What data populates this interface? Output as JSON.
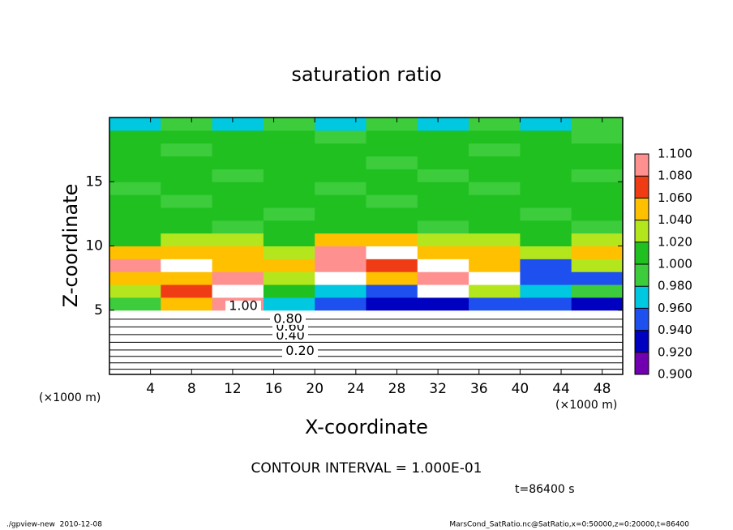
{
  "chart_data": {
    "type": "heatmap",
    "title": "saturation ratio",
    "x_label": "X-coordinate",
    "y_label": "Z-coordinate",
    "x_unit": "(×1000 m)",
    "y_unit": "(×1000 m)",
    "xlim": [
      0,
      50
    ],
    "xticks": [
      4,
      8,
      12,
      16,
      20,
      24,
      28,
      32,
      36,
      40,
      44,
      48
    ],
    "ylim": [
      0,
      20
    ],
    "yticks": [
      5,
      10,
      15
    ],
    "x": [
      2.5,
      7.5,
      12.5,
      17.5,
      22.5,
      27.5,
      32.5,
      37.5,
      42.5,
      47.5
    ],
    "z": [
      0.5,
      1.5,
      2.5,
      3.5,
      4.5,
      5.5,
      6.5,
      7.5,
      8.5,
      9.5,
      10.5,
      11.5,
      12.5,
      13.5,
      14.5,
      15.5,
      16.5,
      17.5,
      18.5,
      19.5
    ],
    "values": [
      [
        0.1,
        0.1,
        0.1,
        0.1,
        0.1,
        0.1,
        0.1,
        0.1,
        0.1,
        0.1
      ],
      [
        0.2,
        0.2,
        0.2,
        0.2,
        0.2,
        0.2,
        0.2,
        0.2,
        0.2,
        0.2
      ],
      [
        0.3,
        0.3,
        0.3,
        0.3,
        0.3,
        0.3,
        0.3,
        0.3,
        0.3,
        0.3
      ],
      [
        0.5,
        0.5,
        0.5,
        0.5,
        0.5,
        0.5,
        0.5,
        0.5,
        0.5,
        0.5
      ],
      [
        0.8,
        0.8,
        0.8,
        0.8,
        0.8,
        0.8,
        0.8,
        0.8,
        0.8,
        0.8
      ],
      [
        1.0,
        1.06,
        1.09,
        0.98,
        0.95,
        0.94,
        0.93,
        0.96,
        0.95,
        0.94
      ],
      [
        1.04,
        1.07,
        1.12,
        1.02,
        0.97,
        0.96,
        1.12,
        1.04,
        0.98,
        1.0
      ],
      [
        1.06,
        1.05,
        1.08,
        1.04,
        1.12,
        1.05,
        1.08,
        1.12,
        0.96,
        0.95
      ],
      [
        1.08,
        1.12,
        1.06,
        1.06,
        1.08,
        1.07,
        1.12,
        1.06,
        0.95,
        1.04
      ],
      [
        1.06,
        1.05,
        1.06,
        1.04,
        1.08,
        1.12,
        1.06,
        1.05,
        1.04,
        1.05
      ],
      [
        1.02,
        1.04,
        1.03,
        1.02,
        1.06,
        1.05,
        1.04,
        1.03,
        1.02,
        1.03
      ],
      [
        1.01,
        1.01,
        1.0,
        1.01,
        1.01,
        1.01,
        1.0,
        1.01,
        1.01,
        1.0
      ],
      [
        1.01,
        1.01,
        1.01,
        1.0,
        1.01,
        1.01,
        1.01,
        1.01,
        1.0,
        1.01
      ],
      [
        1.01,
        1.0,
        1.01,
        1.01,
        1.01,
        1.0,
        1.01,
        1.01,
        1.01,
        1.01
      ],
      [
        1.0,
        1.01,
        1.01,
        1.01,
        1.0,
        1.01,
        1.01,
        1.0,
        1.01,
        1.01
      ],
      [
        1.01,
        1.01,
        1.0,
        1.01,
        1.01,
        1.01,
        1.0,
        1.01,
        1.01,
        1.0
      ],
      [
        1.02,
        1.01,
        1.01,
        1.01,
        1.01,
        1.0,
        1.01,
        1.01,
        1.01,
        1.01
      ],
      [
        1.01,
        1.0,
        1.01,
        1.02,
        1.01,
        1.01,
        1.01,
        1.0,
        1.01,
        1.01
      ],
      [
        1.01,
        1.01,
        1.01,
        1.01,
        1.0,
        1.01,
        1.01,
        1.01,
        1.01,
        1.0
      ],
      [
        0.98,
        0.99,
        0.98,
        0.99,
        0.98,
        0.99,
        0.98,
        0.99,
        0.98,
        0.99
      ]
    ],
    "colorbar_ticks": [
      {
        "value": 0.9,
        "label": "0.900"
      },
      {
        "value": 0.92,
        "label": "0.920"
      },
      {
        "value": 0.94,
        "label": "0.940"
      },
      {
        "value": 0.96,
        "label": "0.960"
      },
      {
        "value": 0.98,
        "label": "0.980"
      },
      {
        "value": 1.0,
        "label": "1.000"
      },
      {
        "value": 1.02,
        "label": "1.020"
      },
      {
        "value": 1.04,
        "label": "1.040"
      },
      {
        "value": 1.06,
        "label": "1.060"
      },
      {
        "value": 1.08,
        "label": "1.080"
      },
      {
        "value": 1.1,
        "label": "1.100"
      }
    ],
    "colors": [
      "#7000b0",
      "#0000c0",
      "#1e50f0",
      "#00c8e0",
      "#3ccc3c",
      "#20c020",
      "#b4e61e",
      "#ffc000",
      "#f03c14",
      "#ff9090"
    ],
    "contour_labels": [
      "0.20",
      "0.40",
      "0.60",
      "0.80",
      "1.00"
    ],
    "contour_interval": "CONTOUR INTERVAL = 1.000E-01",
    "time_label": "t=86400 s",
    "footer_left": "./gpview-new  2010-12-08",
    "footer_right": "MarsCond_SatRatio.nc@SatRatio,x=0:50000,z=0:20000,t=86400"
  }
}
